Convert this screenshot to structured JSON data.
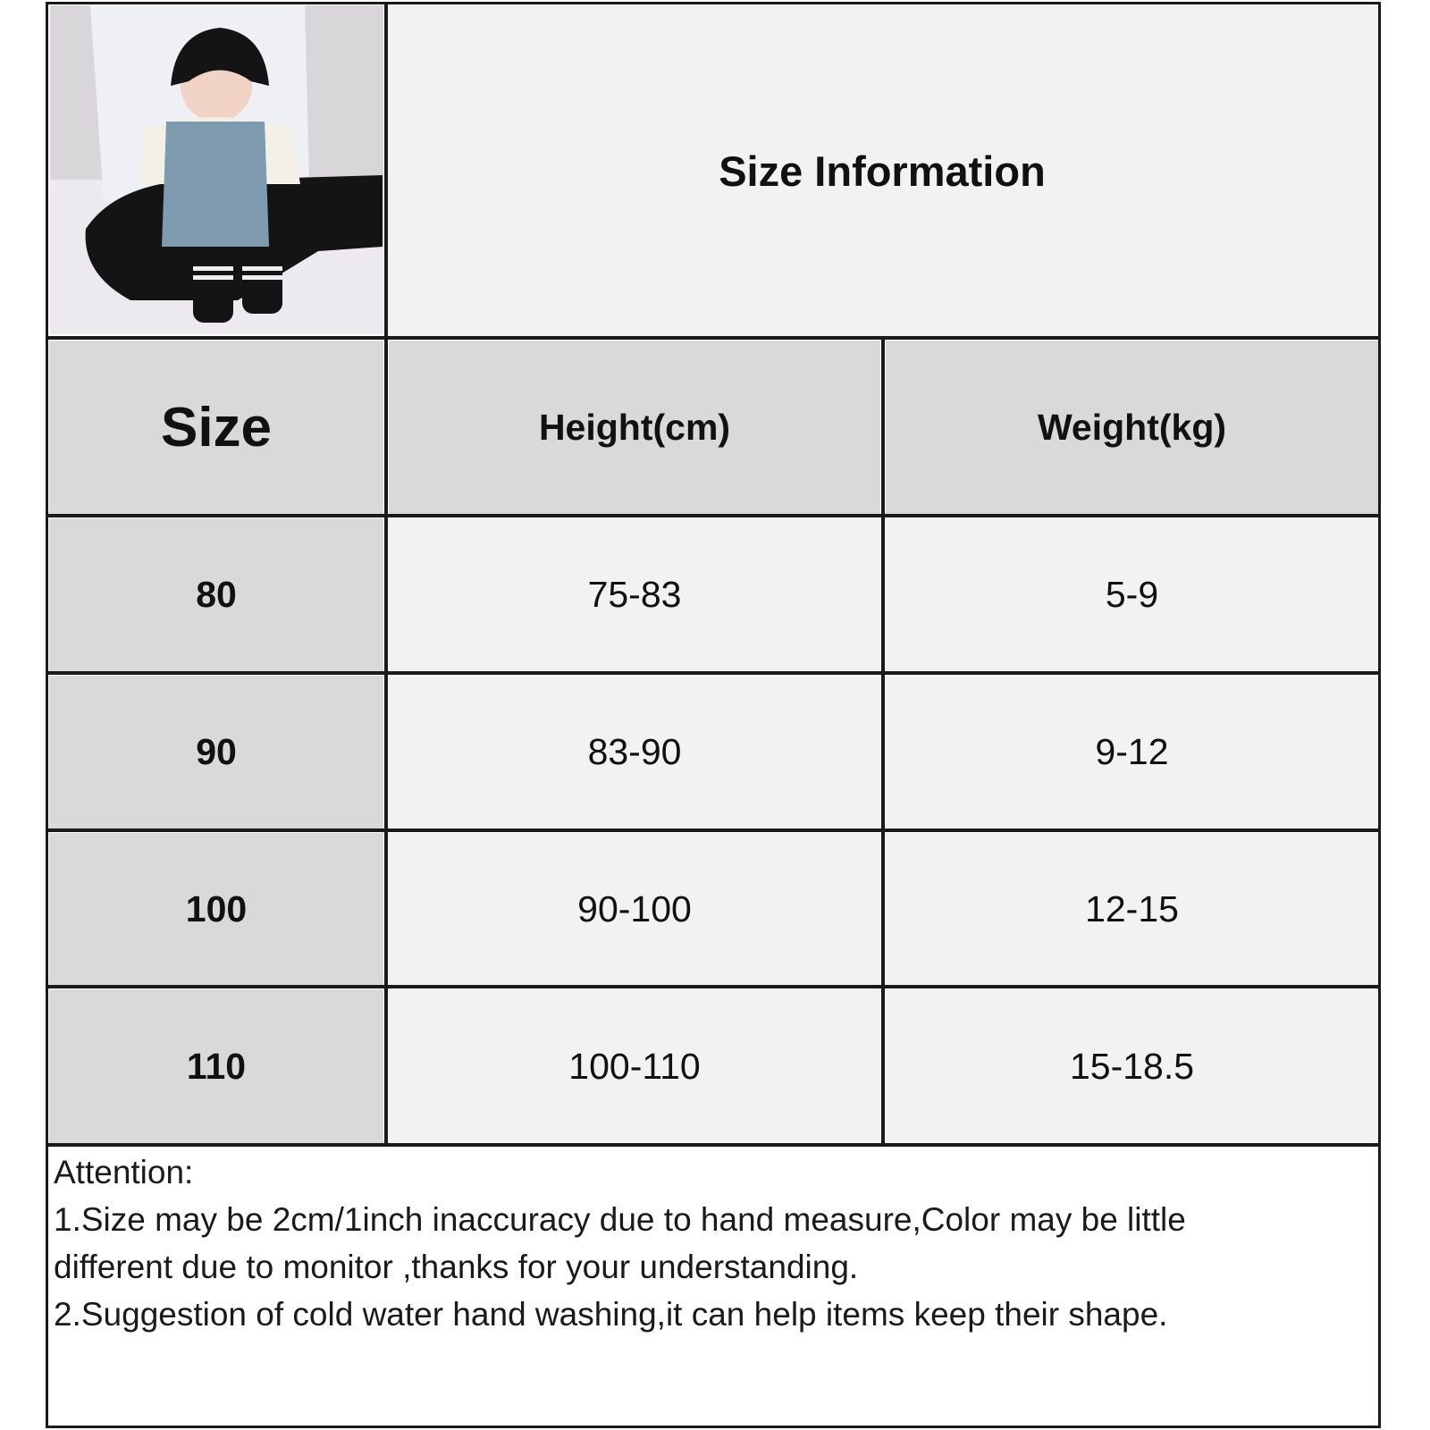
{
  "title": "Size Information",
  "columns": [
    "Size",
    "Height(cm)",
    "Weight(kg)"
  ],
  "rows": [
    {
      "size": "80",
      "height": "75-83",
      "weight": "5-9"
    },
    {
      "size": "90",
      "height": "83-90",
      "weight": "9-12"
    },
    {
      "size": "100",
      "height": "90-100",
      "weight": "12-15"
    },
    {
      "size": "110",
      "height": "100-110",
      "weight": "15-18.5"
    }
  ],
  "notes": {
    "heading": "Attention:",
    "line1": "1.Size may be 2cm/1inch inaccuracy due to hand measure,Color may be little",
    "line2": "different due to monitor ,thanks for your understanding.",
    "line3": "2.Suggestion of cold water hand washing,it can help items keep their shape."
  },
  "colors": {
    "header_bg": "#d9d9d9",
    "cell_bg": "#f2f2f2",
    "border": "#1a1a1a"
  }
}
